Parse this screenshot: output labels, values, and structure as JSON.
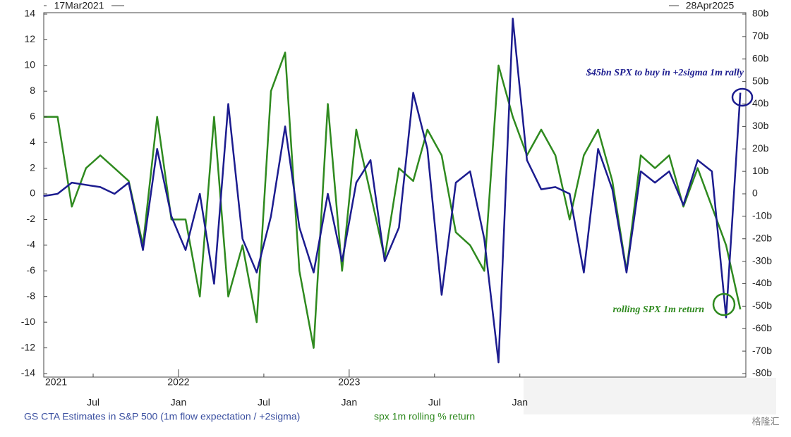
{
  "chart_data": {
    "type": "line",
    "range_labels": [
      "17Mar2021",
      "28Apr2025"
    ],
    "x": [
      "2021-03",
      "2021-04",
      "2021-05",
      "2021-06",
      "2021-07",
      "2021-08",
      "2021-09",
      "2021-10",
      "2021-11",
      "2021-12",
      "2022-01",
      "2022-02",
      "2022-03",
      "2022-04",
      "2022-05",
      "2022-06",
      "2022-07",
      "2022-08",
      "2022-09",
      "2022-10",
      "2022-11",
      "2022-12",
      "2023-01",
      "2023-02",
      "2023-03",
      "2023-04",
      "2023-05",
      "2023-06",
      "2023-07",
      "2023-08",
      "2023-09",
      "2023-10",
      "2023-11",
      "2023-12",
      "2024-01",
      "2024-02",
      "2024-03",
      "2024-04",
      "2024-05",
      "2024-06",
      "2024-07",
      "2024-08",
      "2024-09",
      "2024-10",
      "2024-11",
      "2024-12",
      "2025-01",
      "2025-02",
      "2025-03",
      "2025-04"
    ],
    "xlim": [
      "2021-03-17",
      "2025-04-28"
    ],
    "xticks": [
      {
        "value": "2021-07-01",
        "label": "Jul"
      },
      {
        "value": "2022-01-01",
        "label": "Jan"
      },
      {
        "value": "2022-07-01",
        "label": "Jul"
      },
      {
        "value": "2023-01-01",
        "label": "Jan"
      },
      {
        "value": "2023-07-01",
        "label": "Jul"
      },
      {
        "value": "2024-01-01",
        "label": "Jan"
      }
    ],
    "xticks_major": [
      {
        "value": "2021-03-17",
        "label": "2021"
      },
      {
        "value": "2022-01-01",
        "label": "2022"
      },
      {
        "value": "2023-01-01",
        "label": "2023"
      }
    ],
    "ylim": [
      -14,
      14
    ],
    "yticks": [
      -14,
      -12,
      -10,
      -8,
      -6,
      -4,
      -2,
      0,
      2,
      4,
      6,
      8,
      10,
      12,
      14
    ],
    "y2lim": [
      -80,
      80
    ],
    "y2ticks": [
      {
        "value": -80,
        "label": "-80b"
      },
      {
        "value": -70,
        "label": "-70b"
      },
      {
        "value": -60,
        "label": "-60b"
      },
      {
        "value": -50,
        "label": "-50b"
      },
      {
        "value": -40,
        "label": "-40b"
      },
      {
        "value": -30,
        "label": "-30b"
      },
      {
        "value": -20,
        "label": "-20b"
      },
      {
        "value": -10,
        "label": "-10b"
      },
      0,
      {
        "value": 10,
        "label": "10b"
      },
      {
        "value": 20,
        "label": "20b"
      },
      {
        "value": 30,
        "label": "30b"
      },
      {
        "value": 40,
        "label": "40b"
      },
      {
        "value": 50,
        "label": "50b"
      },
      {
        "value": 60,
        "label": "60b"
      },
      {
        "value": 70,
        "label": "70b"
      },
      {
        "value": 80,
        "label": "80b"
      }
    ],
    "series": [
      {
        "name": "GS CTA Estimates in S&P 500 (1m flow expectation / +2sigma)",
        "color": "#1c1c8f",
        "axis": "y2",
        "values": [
          -1,
          0,
          5,
          4,
          3,
          0,
          5,
          -25,
          20,
          -10,
          -25,
          0,
          -40,
          40,
          -20,
          -35,
          -10,
          30,
          -15,
          -35,
          0,
          -30,
          5,
          15,
          -30,
          -15,
          45,
          20,
          -45,
          5,
          10,
          -20,
          -75,
          78,
          15,
          2,
          3,
          0,
          -35,
          20,
          2,
          -35,
          10,
          5,
          10,
          -5,
          15,
          10,
          -55,
          45
        ]
      },
      {
        "name": "spx 1m rolling % return",
        "color": "#2f8a1f",
        "values": [
          6,
          6,
          -1,
          2,
          3,
          2,
          1,
          -4,
          6,
          -2,
          -2,
          -8,
          6,
          -8,
          -4,
          -10,
          8,
          11,
          -6,
          -12,
          7,
          -6,
          5,
          0,
          -5,
          2,
          1,
          5,
          3,
          -3,
          -4,
          -6,
          10,
          6,
          3,
          5,
          3,
          -2,
          3,
          5,
          1,
          -6,
          3,
          2,
          3,
          -1,
          2,
          -1,
          -4,
          -9
        ]
      }
    ],
    "annotations": [
      "$45bn SPX to buy in +2sigma 1m rally",
      "rolling SPX 1m return"
    ],
    "watermark": "格隆汇"
  }
}
